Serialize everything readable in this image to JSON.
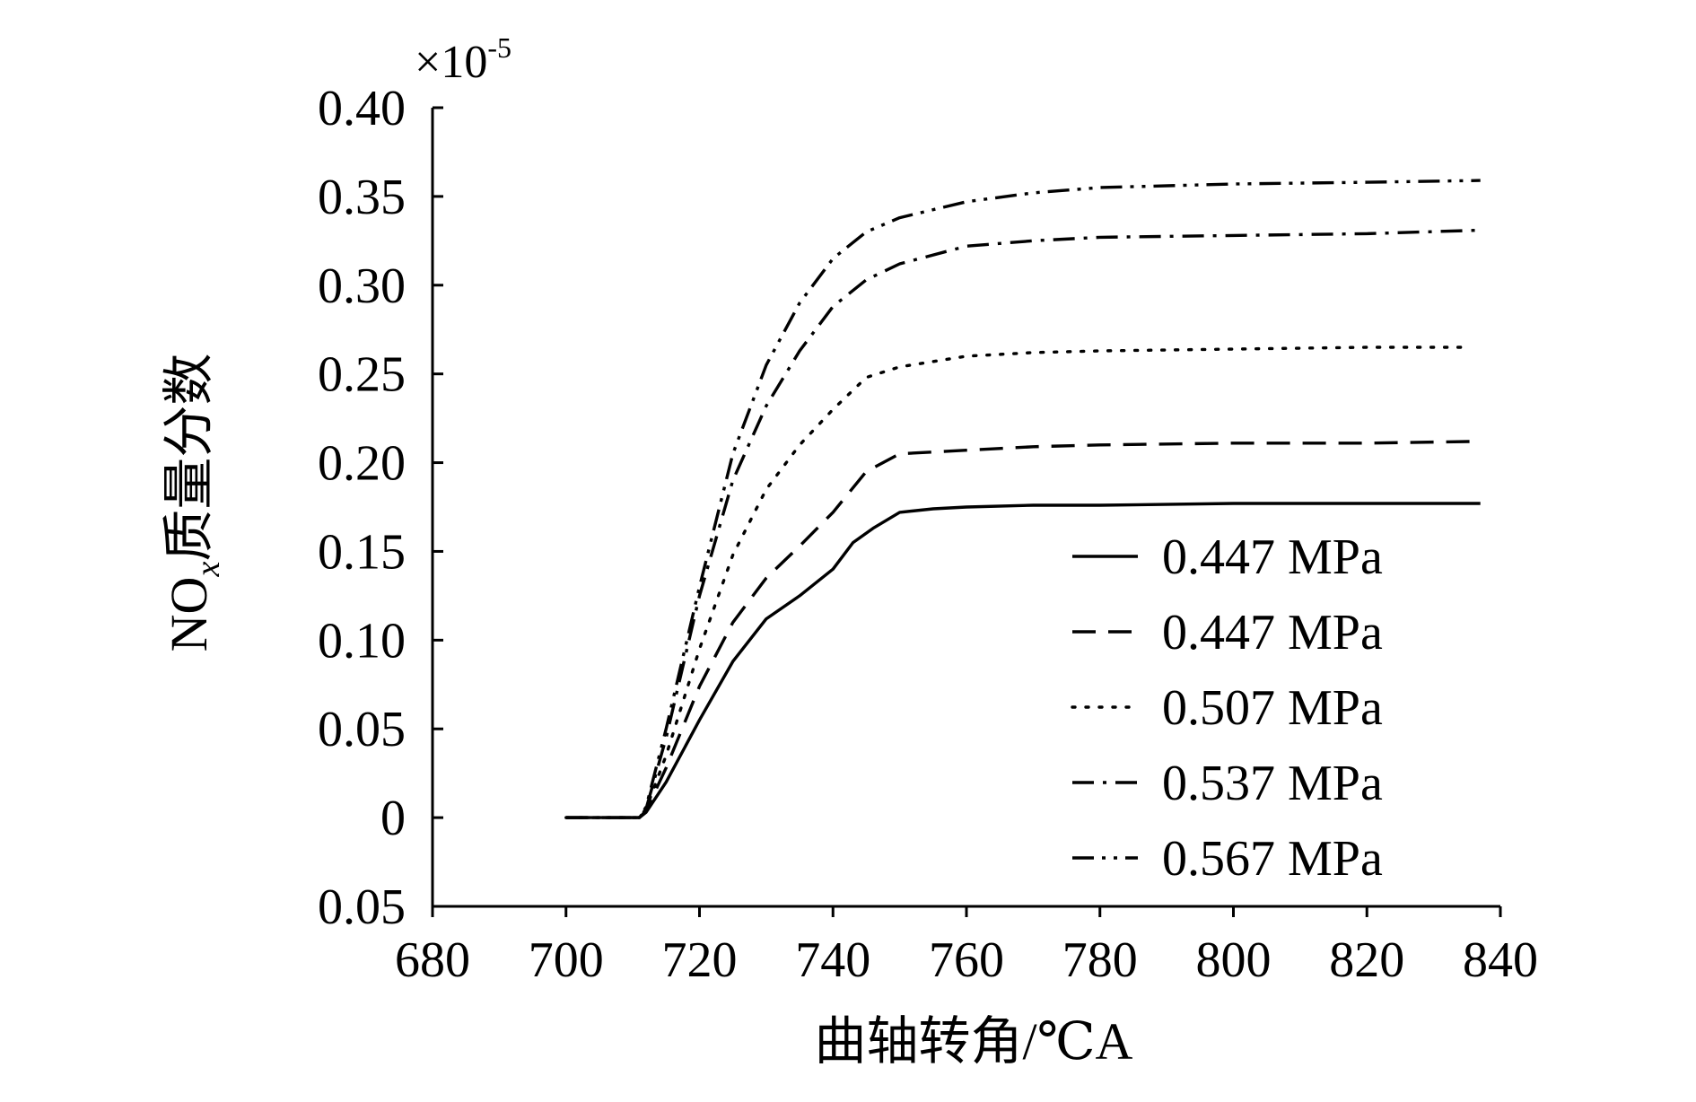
{
  "chart_data": {
    "type": "line",
    "multiplier_base": "×10",
    "multiplier_exponent": "-5",
    "xlabel": "曲轴转角/℃A",
    "ylabel_main": "NO",
    "ylabel_sub": "x",
    "ylabel_rest": "质量分数",
    "xlim": [
      680,
      840
    ],
    "ylim": [
      -0.05,
      0.4
    ],
    "x_ticks": [
      680,
      700,
      720,
      740,
      760,
      780,
      800,
      820,
      840
    ],
    "x_tick_labels": [
      "680",
      "700",
      "720",
      "740",
      "760",
      "780",
      "800",
      "820",
      "840"
    ],
    "y_ticks": [
      0.4,
      0.35,
      0.3,
      0.25,
      0.2,
      0.15,
      0.1,
      0.05,
      0,
      -0.05
    ],
    "y_tick_labels": [
      "0.40",
      "0.35",
      "0.30",
      "0.25",
      "0.20",
      "0.15",
      "0.10",
      "0.05",
      "0",
      "0.05"
    ],
    "legend_position": "right",
    "series": [
      {
        "name": "0.447 MPa",
        "dash": "solid",
        "x": [
          700,
          711,
          712,
          715,
          720,
          725,
          730,
          735,
          740,
          743,
          746,
          750,
          755,
          760,
          770,
          780,
          800,
          820,
          837
        ],
        "y": [
          0,
          0,
          0.003,
          0.02,
          0.055,
          0.088,
          0.112,
          0.125,
          0.14,
          0.155,
          0.163,
          0.172,
          0.174,
          0.175,
          0.176,
          0.176,
          0.177,
          0.177,
          0.177
        ]
      },
      {
        "name": "0.447 MPa",
        "dash": "dash",
        "x": [
          700,
          711,
          712,
          715,
          720,
          725,
          730,
          735,
          740,
          745,
          750,
          760,
          770,
          780,
          800,
          820,
          837
        ],
        "y": [
          0,
          0,
          0.004,
          0.028,
          0.074,
          0.11,
          0.135,
          0.153,
          0.172,
          0.195,
          0.205,
          0.207,
          0.209,
          0.21,
          0.211,
          0.211,
          0.212
        ]
      },
      {
        "name": "0.507 MPa",
        "dash": "dot",
        "x": [
          700,
          711,
          712,
          715,
          720,
          725,
          730,
          735,
          740,
          745,
          750,
          760,
          770,
          780,
          800,
          820,
          835
        ],
        "y": [
          0,
          0,
          0.005,
          0.035,
          0.095,
          0.148,
          0.185,
          0.21,
          0.23,
          0.248,
          0.254,
          0.26,
          0.262,
          0.263,
          0.264,
          0.265,
          0.265
        ]
      },
      {
        "name": "0.537 MPa",
        "dash": "dashdot",
        "x": [
          700,
          711,
          712,
          715,
          720,
          725,
          730,
          735,
          740,
          745,
          750,
          760,
          770,
          780,
          800,
          820,
          837
        ],
        "y": [
          0,
          0,
          0.005,
          0.045,
          0.125,
          0.19,
          0.232,
          0.263,
          0.288,
          0.303,
          0.312,
          0.322,
          0.325,
          0.327,
          0.328,
          0.329,
          0.331
        ]
      },
      {
        "name": "0.567 MPa",
        "dash": "dashdotdot",
        "x": [
          700,
          711,
          712,
          715,
          720,
          725,
          730,
          735,
          740,
          745,
          750,
          760,
          770,
          780,
          800,
          820,
          837
        ],
        "y": [
          0,
          0,
          0.006,
          0.05,
          0.13,
          0.205,
          0.255,
          0.29,
          0.315,
          0.33,
          0.338,
          0.347,
          0.352,
          0.355,
          0.357,
          0.358,
          0.359
        ]
      }
    ]
  }
}
